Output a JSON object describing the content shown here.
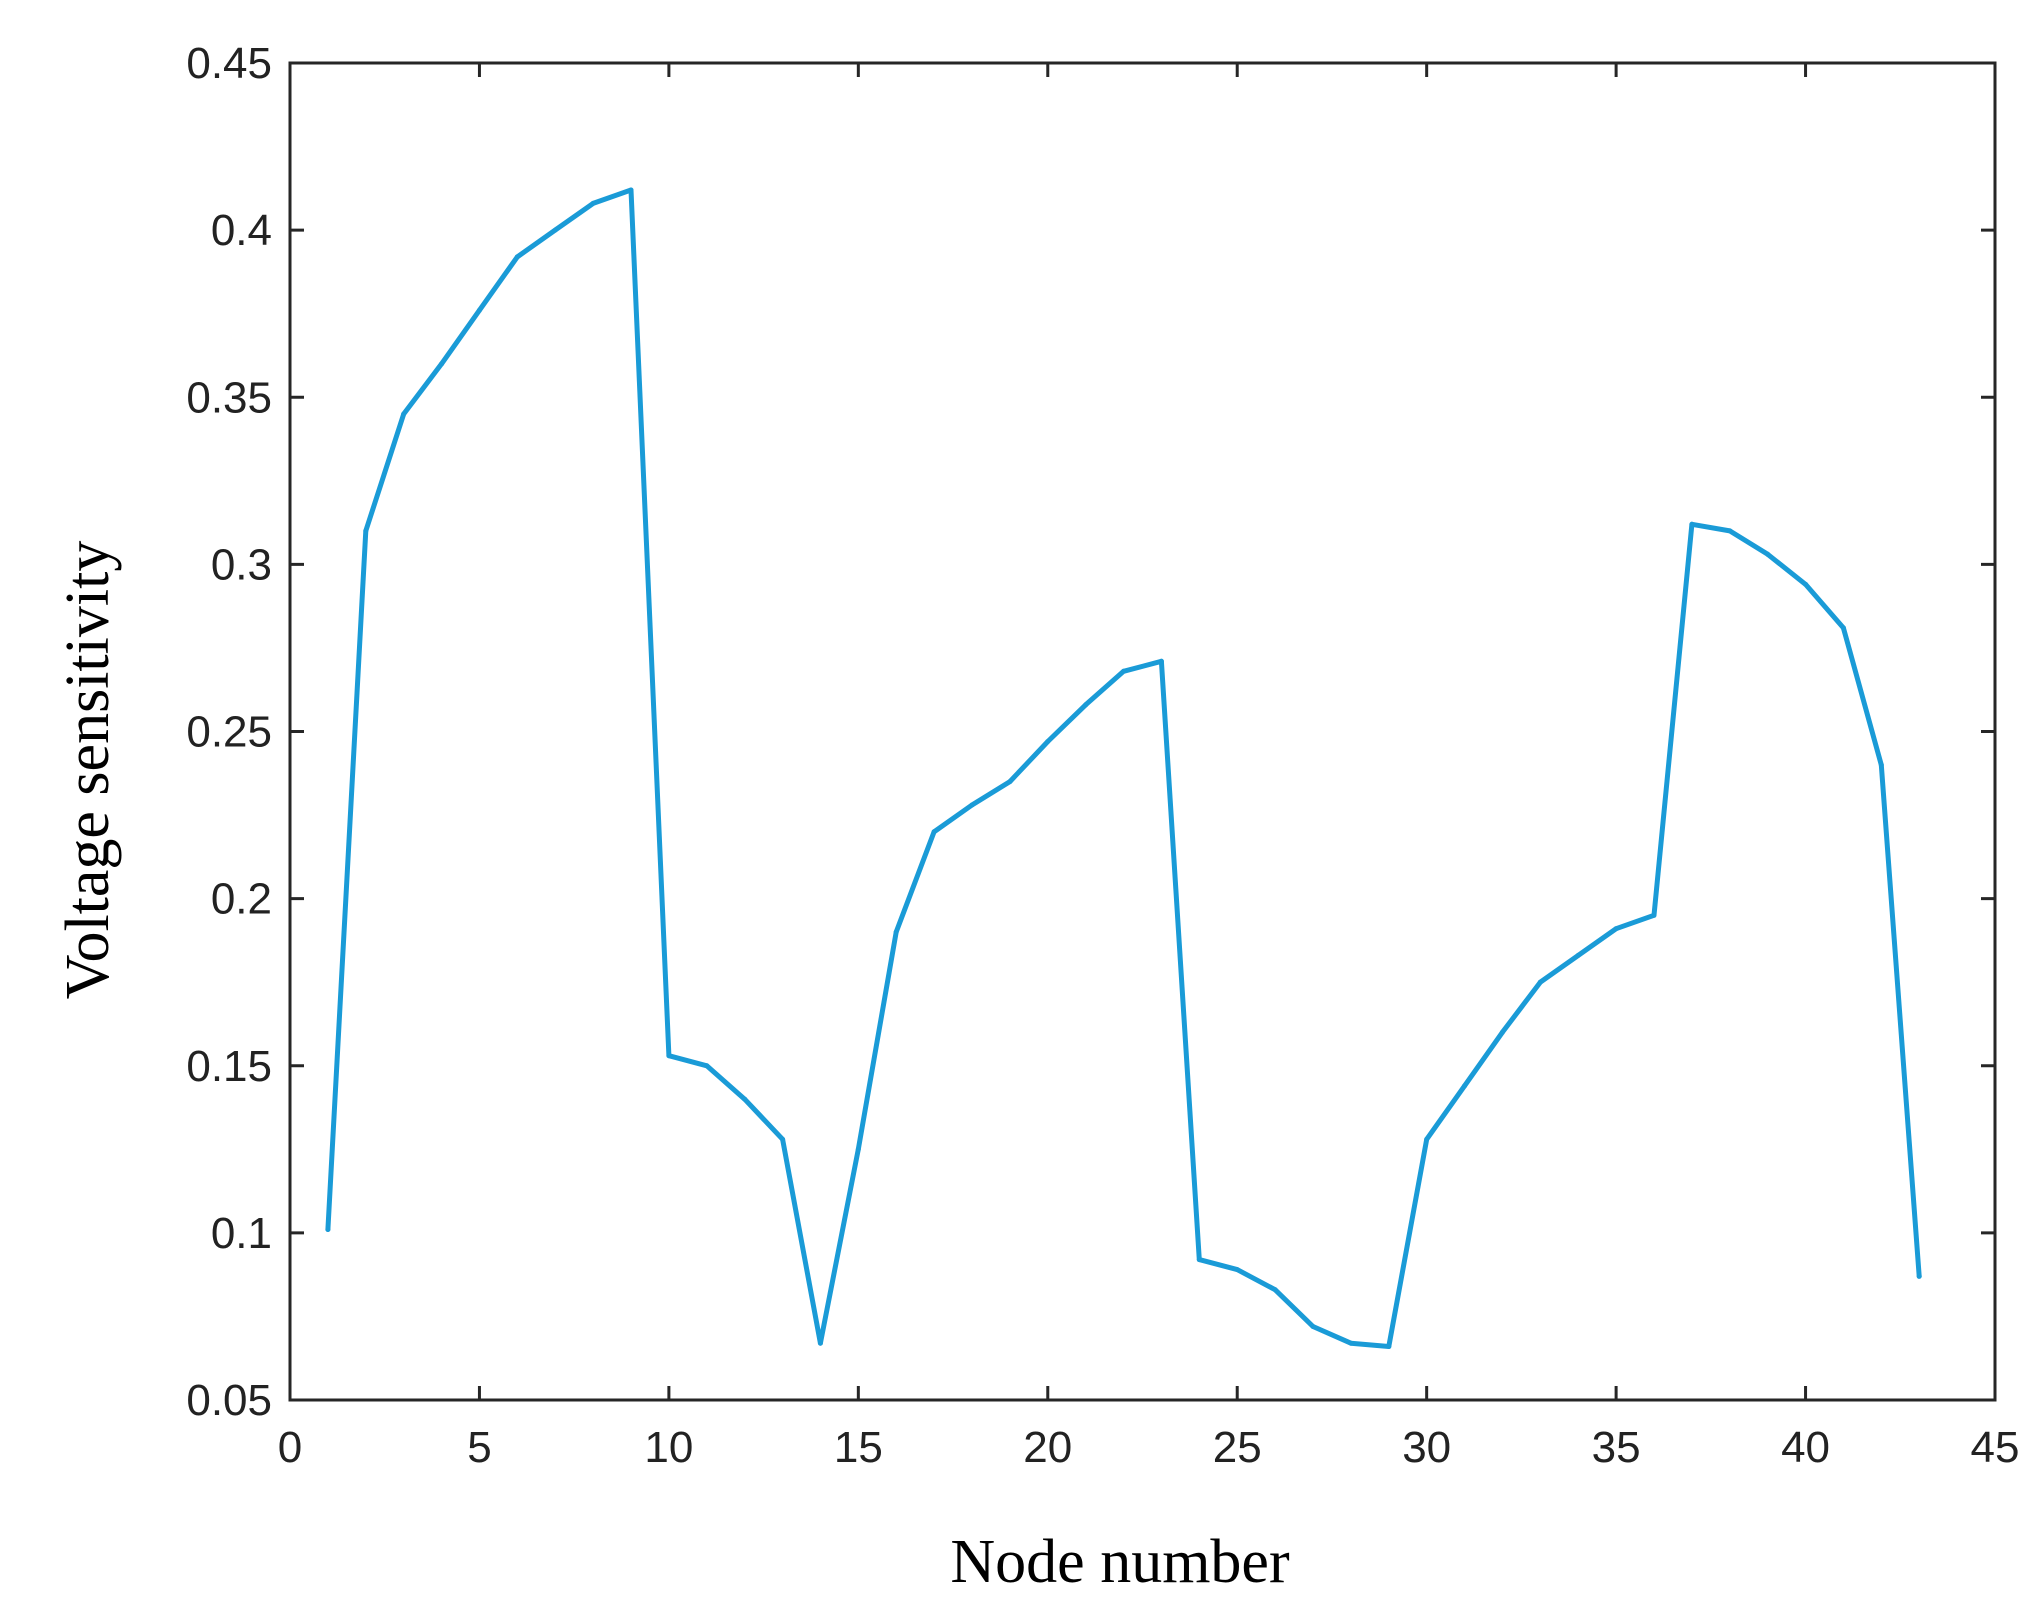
{
  "chart_data": {
    "type": "line",
    "title": "",
    "xlabel": "Node number",
    "ylabel": "Voltage sensitivity",
    "xlim": [
      0,
      45
    ],
    "ylim": [
      0.05,
      0.45
    ],
    "xticks": [
      0,
      5,
      10,
      15,
      20,
      25,
      30,
      35,
      40,
      45
    ],
    "xtick_labels": [
      "0",
      "5",
      "10",
      "15",
      "20",
      "25",
      "30",
      "35",
      "40",
      "45"
    ],
    "yticks": [
      0.05,
      0.1,
      0.15,
      0.2,
      0.25,
      0.3,
      0.35,
      0.4,
      0.45
    ],
    "ytick_labels": [
      "0.05",
      "0.1",
      "0.15",
      "0.2",
      "0.25",
      "0.3",
      "0.35",
      "0.4",
      "0.45"
    ],
    "grid": false,
    "legend": "none",
    "line_color": "#1a9bd7",
    "series": [
      {
        "x": [
          1,
          2,
          3,
          4,
          5,
          6,
          7,
          8,
          9,
          10,
          11,
          12,
          13,
          14,
          15,
          16,
          17,
          18,
          19,
          20,
          21,
          22,
          23,
          24,
          25,
          26,
          27,
          28,
          29,
          30,
          31,
          32,
          33,
          34,
          35,
          36,
          37,
          38,
          39,
          40,
          41,
          42,
          43
        ],
        "values": [
          0.101,
          0.31,
          0.345,
          0.36,
          0.376,
          0.392,
          0.4,
          0.408,
          0.412,
          0.153,
          0.15,
          0.14,
          0.128,
          0.067,
          0.125,
          0.19,
          0.22,
          0.228,
          0.235,
          0.247,
          0.258,
          0.268,
          0.271,
          0.092,
          0.089,
          0.083,
          0.072,
          0.067,
          0.066,
          0.128,
          0.144,
          0.16,
          0.175,
          0.183,
          0.191,
          0.195,
          0.312,
          0.31,
          0.303,
          0.294,
          0.281,
          0.24,
          0.087
        ]
      }
    ]
  }
}
